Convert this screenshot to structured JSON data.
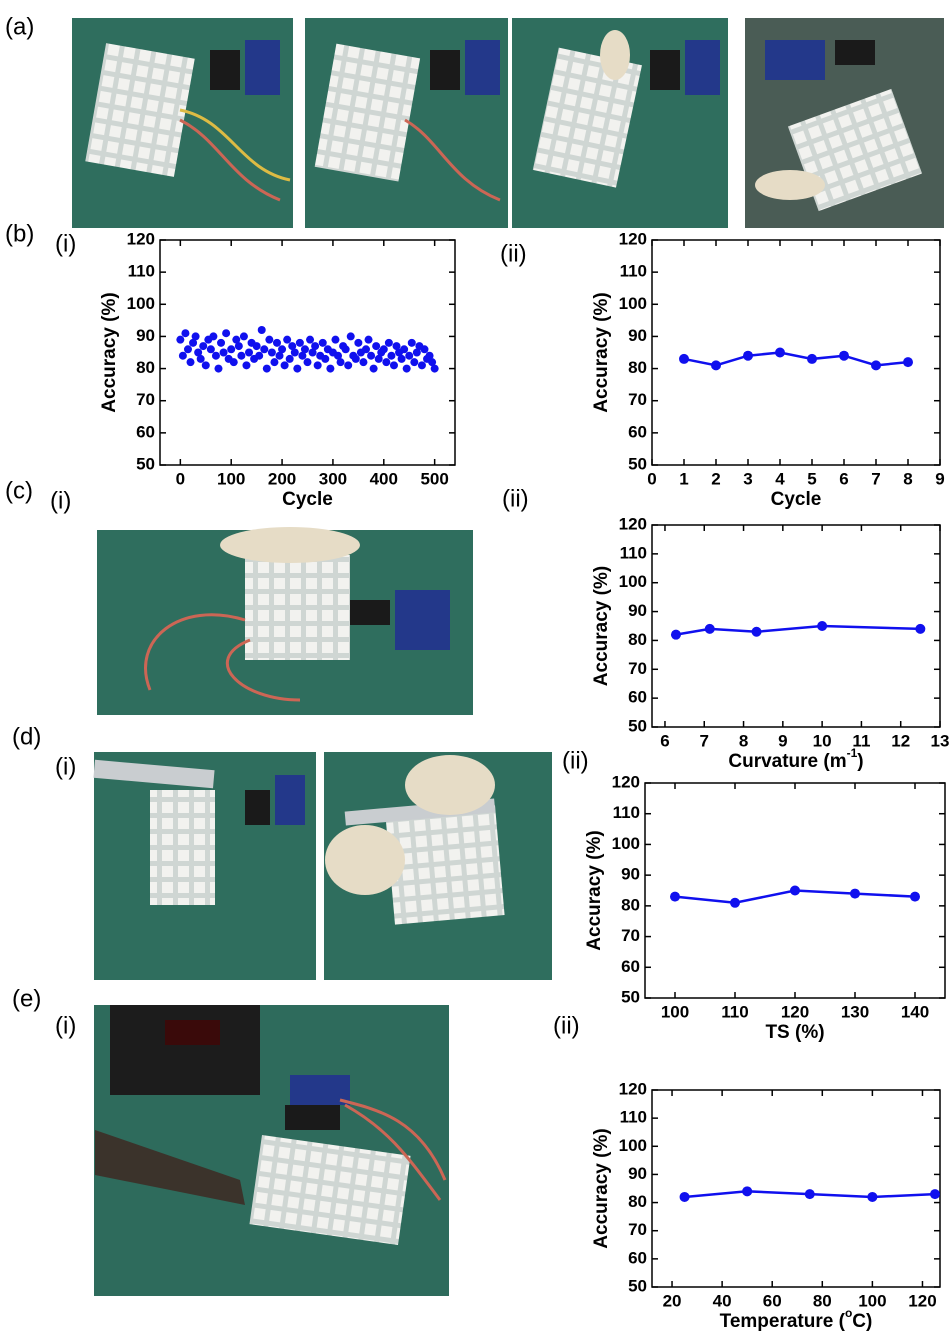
{
  "panel_labels": [
    "(a)",
    "(b)",
    "(i)",
    "(ii)",
    "(c)",
    "(i)",
    "(ii)",
    "(d)",
    "(i)",
    "(ii)",
    "(e)",
    "(i)",
    "(ii)"
  ],
  "chart_data": [
    {
      "type": "scatter",
      "color": "#1010ee",
      "y_label": "Accuracy (%)",
      "x_label_parts": [
        "Cycle"
      ],
      "x": [
        0,
        5,
        10,
        15,
        20,
        25,
        30,
        35,
        40,
        45,
        50,
        55,
        60,
        65,
        70,
        75,
        80,
        85,
        90,
        95,
        100,
        105,
        110,
        115,
        120,
        125,
        130,
        135,
        140,
        145,
        150,
        155,
        160,
        165,
        170,
        175,
        180,
        185,
        190,
        195,
        200,
        205,
        210,
        215,
        220,
        225,
        230,
        235,
        240,
        245,
        250,
        255,
        260,
        265,
        270,
        275,
        280,
        285,
        290,
        295,
        300,
        305,
        310,
        315,
        320,
        325,
        330,
        335,
        340,
        345,
        350,
        355,
        360,
        365,
        370,
        375,
        380,
        385,
        390,
        395,
        400,
        405,
        410,
        415,
        420,
        425,
        430,
        435,
        440,
        445,
        450,
        455,
        460,
        465,
        470,
        475,
        480,
        485,
        490,
        495,
        500
      ],
      "values": [
        89,
        84,
        91,
        86,
        82,
        88,
        90,
        85,
        83,
        87,
        81,
        89,
        86,
        90,
        84,
        80,
        88,
        85,
        91,
        83,
        86,
        82,
        89,
        87,
        84,
        90,
        81,
        85,
        88,
        83,
        87,
        84,
        92,
        86,
        80,
        89,
        85,
        82,
        88,
        84,
        86,
        81,
        89,
        83,
        87,
        85,
        80,
        88,
        84,
        86,
        82,
        89,
        85,
        87,
        81,
        84,
        88,
        83,
        86,
        80,
        85,
        89,
        84,
        82,
        87,
        86,
        81,
        90,
        84,
        83,
        88,
        85,
        82,
        86,
        89,
        84,
        80,
        87,
        83,
        85,
        86,
        82,
        88,
        84,
        81,
        87,
        85,
        83,
        86,
        80,
        84,
        88,
        82,
        85,
        87,
        81,
        86,
        83,
        84,
        82,
        80
      ],
      "xlim": [
        -40,
        540
      ],
      "ylim": [
        50,
        120
      ],
      "xticks": [
        0,
        100,
        200,
        300,
        400,
        500
      ],
      "yticks": [
        50,
        60,
        70,
        80,
        90,
        100,
        110,
        120
      ]
    },
    {
      "type": "line",
      "color": "#1010ee",
      "y_label": "Accuracy (%)",
      "x_label_parts": [
        "Cycle"
      ],
      "x": [
        1,
        2,
        3,
        4,
        5,
        6,
        7,
        8
      ],
      "values": [
        83,
        81,
        84,
        85,
        83,
        84,
        81,
        82
      ],
      "xlim": [
        0,
        9
      ],
      "ylim": [
        50,
        120
      ],
      "xticks": [
        0,
        1,
        2,
        3,
        4,
        5,
        6,
        7,
        8,
        9
      ],
      "yticks": [
        50,
        60,
        70,
        80,
        90,
        100,
        110,
        120
      ]
    },
    {
      "type": "line",
      "color": "#1010ee",
      "y_label": "Accuracy (%)",
      "x_label_parts": [
        "Curvature (m",
        "-1",
        ")"
      ],
      "x": [
        6.28,
        7.14,
        8.33,
        10,
        12.5
      ],
      "values": [
        82,
        84,
        83,
        85,
        84
      ],
      "xlim": [
        5.67,
        13
      ],
      "ylim": [
        50,
        120
      ],
      "xticks": [
        6,
        7,
        8,
        9,
        10,
        11,
        12,
        13
      ],
      "yticks": [
        50,
        60,
        70,
        80,
        90,
        100,
        110,
        120
      ]
    },
    {
      "type": "line",
      "color": "#1010ee",
      "y_label": "Accuracy (%)",
      "x_label_parts": [
        "TS (%)"
      ],
      "x": [
        100,
        110,
        120,
        130,
        140
      ],
      "values": [
        83,
        81,
        85,
        84,
        83
      ],
      "xlim": [
        95,
        145
      ],
      "ylim": [
        50,
        120
      ],
      "xticks": [
        100,
        110,
        120,
        130,
        140
      ],
      "yticks": [
        50,
        60,
        70,
        80,
        90,
        100,
        110,
        120
      ]
    },
    {
      "type": "line",
      "color": "#1010ee",
      "y_label": "Accuracy (%)",
      "x_label_parts": [
        "Temperature (",
        "o",
        "C)"
      ],
      "x": [
        25,
        50,
        75,
        100,
        125
      ],
      "values": [
        82,
        84,
        83,
        82,
        83
      ],
      "xlim": [
        12,
        127
      ],
      "ylim": [
        50,
        120
      ],
      "xticks": [
        20,
        40,
        60,
        80,
        100,
        120
      ],
      "yticks": [
        50,
        60,
        70,
        80,
        90,
        100,
        110,
        120
      ]
    }
  ]
}
